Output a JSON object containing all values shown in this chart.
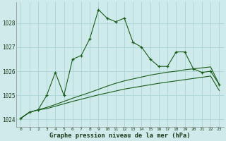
{
  "xlabel": "Graphe pression niveau de la mer (hPa)",
  "background_color": "#ceeaea",
  "grid_color": "#b0d8d8",
  "line_color": "#1a5c1a",
  "hours": [
    0,
    1,
    2,
    3,
    4,
    5,
    6,
    7,
    8,
    9,
    10,
    11,
    12,
    13,
    14,
    15,
    16,
    17,
    18,
    19,
    20,
    21,
    22,
    23
  ],
  "pressure_main": [
    1024.05,
    1024.3,
    1024.4,
    1025.0,
    1025.95,
    1025.0,
    1026.5,
    1026.65,
    1027.35,
    1028.55,
    1028.2,
    1028.05,
    1028.2,
    1027.2,
    1027.0,
    1026.5,
    1026.2,
    1026.2,
    1026.8,
    1026.8,
    1026.1,
    1025.95,
    1026.0,
    1025.45
  ],
  "pressure_line2": [
    1024.05,
    1024.3,
    1024.4,
    1024.5,
    1024.62,
    1024.75,
    1024.88,
    1025.0,
    1025.12,
    1025.25,
    1025.38,
    1025.5,
    1025.6,
    1025.68,
    1025.76,
    1025.84,
    1025.9,
    1025.96,
    1026.0,
    1026.06,
    1026.1,
    1026.14,
    1026.18,
    1025.45
  ],
  "pressure_line3": [
    1024.05,
    1024.3,
    1024.4,
    1024.45,
    1024.55,
    1024.65,
    1024.75,
    1024.84,
    1024.93,
    1025.02,
    1025.1,
    1025.18,
    1025.26,
    1025.32,
    1025.38,
    1025.44,
    1025.5,
    1025.55,
    1025.6,
    1025.65,
    1025.7,
    1025.75,
    1025.8,
    1025.2
  ],
  "ylim_min": 1023.7,
  "ylim_max": 1028.85,
  "yticks": [
    1024,
    1025,
    1026,
    1027,
    1028
  ]
}
